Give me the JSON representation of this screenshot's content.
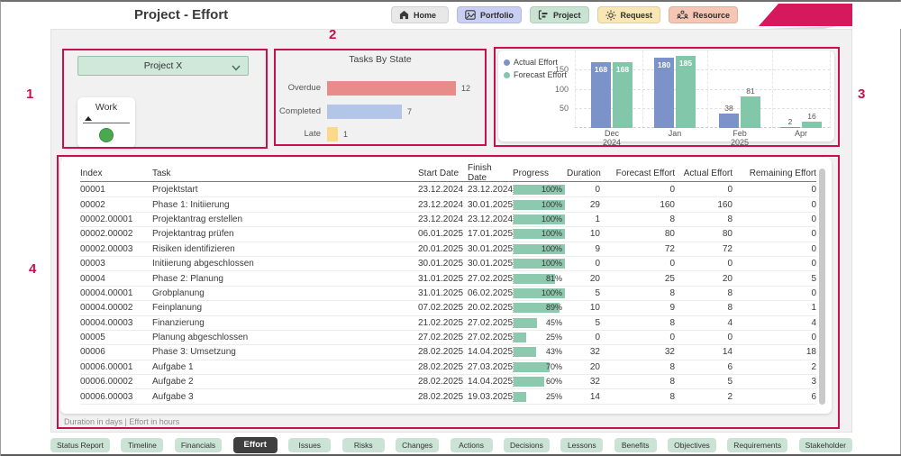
{
  "header": {
    "title": "Project - Effort",
    "nav": [
      {
        "label": "Home",
        "icon": "home-icon",
        "bg": "#e8e8e8"
      },
      {
        "label": "Portfolio",
        "icon": "portfolio-icon",
        "bg": "#c9cff2"
      },
      {
        "label": "Project",
        "icon": "project-icon",
        "bg": "#c9e3d3"
      },
      {
        "label": "Request",
        "icon": "request-icon",
        "bg": "#f8e7b4"
      },
      {
        "label": "Resource",
        "icon": "resource-icon",
        "bg": "#f6c6b4"
      }
    ]
  },
  "filters": {
    "project": "Project X",
    "work_label": "Work",
    "work_status_color": "#4aa94e"
  },
  "brand": {
    "ribbon": "#d6195c",
    "annotation": "#c8104f"
  },
  "annotations": [
    "1",
    "2",
    "3",
    "4"
  ],
  "chart_data": [
    {
      "type": "bar",
      "orientation": "horizontal",
      "title": "Tasks By State",
      "categories": [
        "Overdue",
        "Completed",
        "Late"
      ],
      "values": [
        12,
        7,
        1
      ],
      "colors": [
        "#e98b8b",
        "#b3c6e7",
        "#fcd889"
      ],
      "xlim": [
        0,
        12
      ],
      "grid": false,
      "data_labels": true
    },
    {
      "type": "bar",
      "title": "",
      "categories": [
        "Dec 2024",
        "Jan",
        "Feb 2025",
        "Apr"
      ],
      "category_lines": [
        [
          "Dec",
          "2024"
        ],
        [
          "Jan"
        ],
        [
          "Feb",
          "2025"
        ],
        [
          "Apr"
        ]
      ],
      "series": [
        {
          "name": "Actual Effort",
          "color": "#7b93c9",
          "values": [
            168,
            180,
            38,
            2
          ]
        },
        {
          "name": "Forecast Effort",
          "color": "#82c7aa",
          "values": [
            168,
            185,
            81,
            16
          ]
        }
      ],
      "ylim": [
        0,
        200
      ],
      "yticks": [
        50,
        100,
        150
      ],
      "grid": true,
      "legend_position": "left",
      "data_labels": true
    }
  ],
  "table": {
    "columns": [
      "Index",
      "Task",
      "Start Date",
      "Finish Date",
      "Progress",
      "Duration",
      "Forecast Effort",
      "Actual Effort",
      "Remaining Effort"
    ],
    "progress_color": "#8cc9ae",
    "rows": [
      [
        "00001",
        "Projektstart",
        "23.12.2024",
        "23.12.2024",
        100,
        0,
        0,
        0,
        0
      ],
      [
        "00002",
        "Phase 1: Initiierung",
        "23.12.2024",
        "30.01.2025",
        100,
        29,
        160,
        160,
        0
      ],
      [
        "00002.00001",
        "Projektantrag erstellen",
        "23.12.2024",
        "23.12.2024",
        100,
        1,
        8,
        8,
        0
      ],
      [
        "00002.00002",
        "Projektantrag prüfen",
        "06.01.2025",
        "17.01.2025",
        100,
        10,
        80,
        80,
        0
      ],
      [
        "00002.00003",
        "Risiken identifizieren",
        "20.01.2025",
        "30.01.2025",
        100,
        9,
        72,
        72,
        0
      ],
      [
        "00003",
        "Initiierung abgeschlossen",
        "30.01.2025",
        "30.01.2025",
        100,
        0,
        0,
        0,
        0
      ],
      [
        "00004",
        "Phase 2: Planung",
        "31.01.2025",
        "27.02.2025",
        81,
        20,
        25,
        20,
        5
      ],
      [
        "00004.00001",
        "Grobplanung",
        "31.01.2025",
        "06.02.2025",
        100,
        5,
        8,
        8,
        0
      ],
      [
        "00004.00002",
        "Feinplanung",
        "07.02.2025",
        "20.02.2025",
        89,
        10,
        9,
        8,
        1
      ],
      [
        "00004.00003",
        "Finanzierung",
        "21.02.2025",
        "27.02.2025",
        45,
        5,
        8,
        4,
        4
      ],
      [
        "00005",
        "Planung abgeschlossen",
        "27.02.2025",
        "27.02.2025",
        25,
        0,
        0,
        0,
        0
      ],
      [
        "00006",
        "Phase 3: Umsetzung",
        "28.02.2025",
        "14.04.2025",
        43,
        32,
        32,
        14,
        18
      ],
      [
        "00006.00001",
        "Aufgabe 1",
        "28.02.2025",
        "27.03.2025",
        70,
        20,
        8,
        6,
        2
      ],
      [
        "00006.00002",
        "Aufgabe 2",
        "28.02.2025",
        "14.04.2025",
        60,
        32,
        8,
        5,
        3
      ],
      [
        "00006.00003",
        "Aufgabe 3",
        "28.02.2025",
        "19.03.2025",
        25,
        14,
        8,
        2,
        6
      ]
    ]
  },
  "footer_note": "Duration in days  |  Effort in hours",
  "tabs": [
    {
      "label": "Status Report",
      "active": false
    },
    {
      "label": "Timeline",
      "active": false
    },
    {
      "label": "Financials",
      "active": false
    },
    {
      "label": "Effort",
      "active": true
    },
    {
      "label": "Issues",
      "active": false
    },
    {
      "label": "Risks",
      "active": false
    },
    {
      "label": "Changes",
      "active": false
    },
    {
      "label": "Actions",
      "active": false
    },
    {
      "label": "Decisions",
      "active": false
    },
    {
      "label": "Lessons",
      "active": false
    },
    {
      "label": "Benefits",
      "active": false
    },
    {
      "label": "Objectives",
      "active": false
    },
    {
      "label": "Requirements",
      "active": false
    },
    {
      "label": "Stakeholder",
      "active": false
    }
  ]
}
